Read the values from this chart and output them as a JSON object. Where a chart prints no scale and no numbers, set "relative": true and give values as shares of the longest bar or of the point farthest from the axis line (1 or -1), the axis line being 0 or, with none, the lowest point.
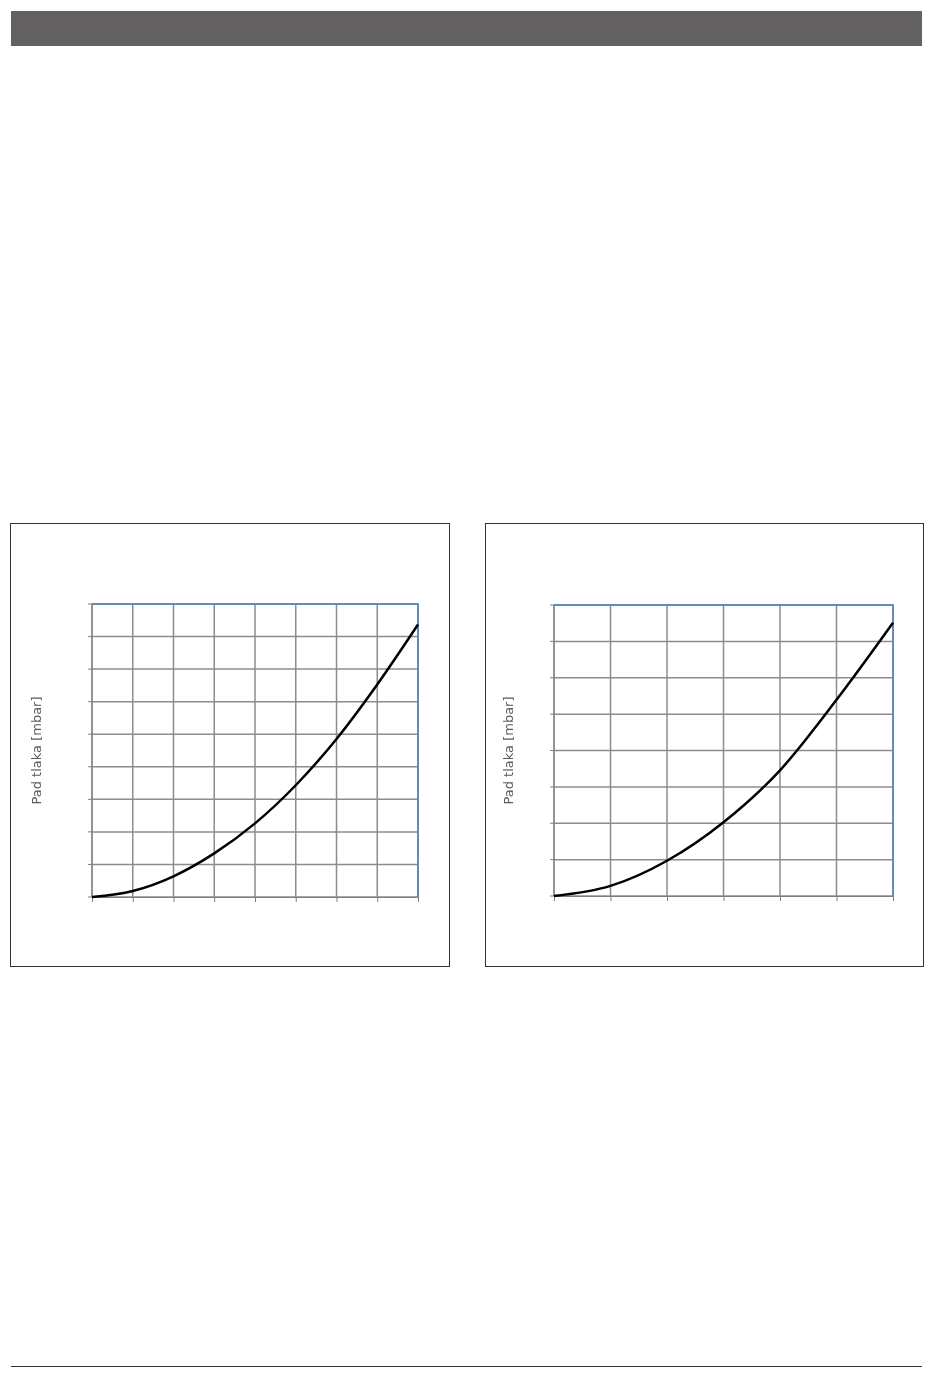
{
  "chart_data": [
    {
      "type": "line",
      "ylabel": "Pad tlaka [mbar]",
      "categories": [
        null,
        null,
        null,
        null,
        null,
        null,
        null,
        null,
        null
      ],
      "relative": true,
      "grid": true,
      "color": "#000000",
      "values": [
        0,
        0.022,
        0.076,
        0.16,
        0.27,
        0.41,
        0.58,
        0.78,
        1
      ]
    },
    {
      "type": "line",
      "ylabel": "Pad tlaka [mbar]",
      "categories": [
        null,
        null,
        null,
        null,
        null,
        null,
        null
      ],
      "relative": true,
      "grid": true,
      "color": "#000000",
      "values": [
        0,
        0.037,
        0.129,
        0.27,
        0.46,
        0.718,
        1
      ]
    }
  ]
}
